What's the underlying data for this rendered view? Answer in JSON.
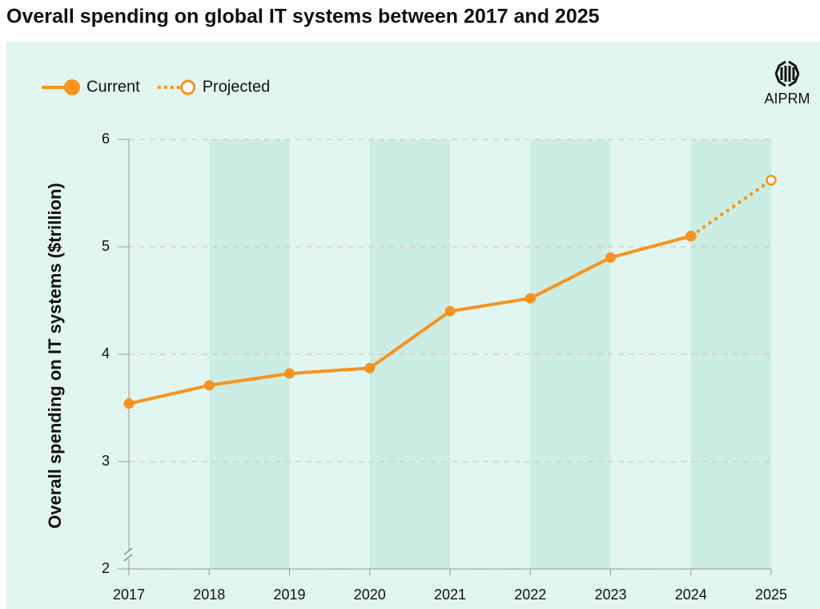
{
  "chart_data": {
    "type": "line",
    "title": "Overall spending on global IT systems between 2017 and 2025",
    "y_label": "Overall spending on IT systems ($trillion)",
    "brand": "AIPRM",
    "categories": [
      "2017",
      "2018",
      "2019",
      "2020",
      "2021",
      "2022",
      "2023",
      "2024",
      "2025"
    ],
    "series": [
      {
        "name": "Current",
        "color": "#f7931e",
        "style": "solid",
        "values": [
          3.54,
          3.71,
          3.82,
          3.87,
          4.4,
          4.52,
          4.9,
          5.1,
          null
        ]
      },
      {
        "name": "Projected",
        "color": "#f7931e",
        "style": "dotted",
        "values": [
          null,
          null,
          null,
          null,
          null,
          null,
          null,
          5.1,
          5.62
        ]
      }
    ],
    "ylim": [
      2,
      6
    ],
    "yticks": [
      2,
      3,
      4,
      5,
      6
    ],
    "grid": true
  }
}
